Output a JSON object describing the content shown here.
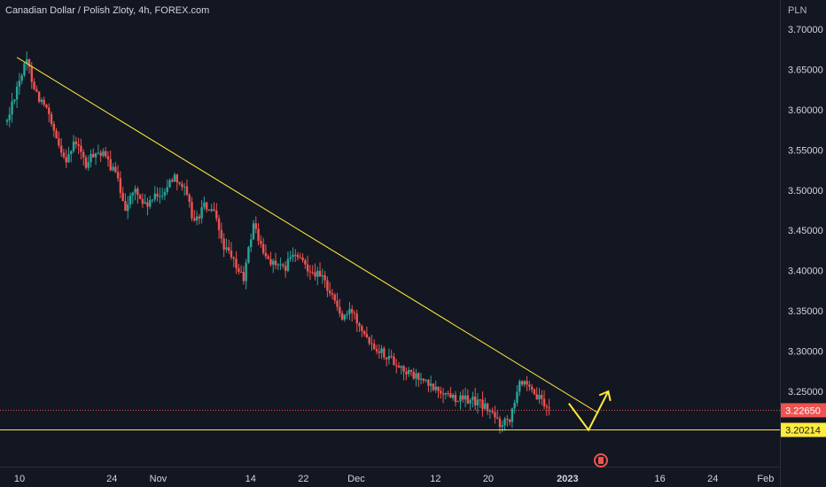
{
  "header": {
    "title": "Canadian Dollar / Polish Zloty, 4h, FOREX.com",
    "unit": "PLN"
  },
  "colors": {
    "background": "#131722",
    "up": "#26a69a",
    "down": "#ef5350",
    "neutral": "#b2b5be",
    "drawing": "#ffeb3b",
    "price_line": "#ef5350",
    "label_text": "#d1d4dc"
  },
  "icons": {
    "event_marker": "flag-icon"
  },
  "chart_data": {
    "type": "candlestick",
    "title": "Canadian Dollar / Polish Zloty, 4h, FOREX.com",
    "ylabel": "PLN",
    "ylim": [
      3.185,
      3.725
    ],
    "xlim": [
      -1,
      61
    ],
    "y_ticks": [
      3.25,
      3.3,
      3.35,
      3.4,
      3.45,
      3.5,
      3.55,
      3.6,
      3.65,
      3.7
    ],
    "y_tick_labels": [
      "3.25000",
      "3.30000",
      "3.35000",
      "3.40000",
      "3.45000",
      "3.50000",
      "3.55000",
      "3.60000",
      "3.65000",
      "3.70000"
    ],
    "x_ticks": [
      {
        "day": 0,
        "label": "10"
      },
      {
        "day": 14,
        "label": "24"
      },
      {
        "day": 21,
        "label": "Nov"
      },
      {
        "day": 35,
        "label": "14"
      },
      {
        "day": 43,
        "label": "22"
      },
      {
        "day": 51,
        "label": "Dec"
      },
      {
        "day": 63,
        "label": "12"
      },
      {
        "day": 71,
        "label": "20"
      },
      {
        "day": 83,
        "label": "2023"
      },
      {
        "day": 97,
        "label": "16"
      },
      {
        "day": 105,
        "label": "24"
      },
      {
        "day": 113,
        "label": "Feb"
      }
    ],
    "price_path": [
      [
        0,
        3.585
      ],
      [
        1,
        3.63
      ],
      [
        2,
        3.66
      ],
      [
        3,
        3.62
      ],
      [
        4,
        3.6
      ],
      [
        5,
        3.56
      ],
      [
        6,
        3.54
      ],
      [
        7,
        3.56
      ],
      [
        8,
        3.53
      ],
      [
        9,
        3.55
      ],
      [
        10,
        3.54
      ],
      [
        11,
        3.52
      ],
      [
        12,
        3.48
      ],
      [
        13,
        3.5
      ],
      [
        14,
        3.48
      ],
      [
        15,
        3.49
      ],
      [
        16,
        3.5
      ],
      [
        17,
        3.52
      ],
      [
        18,
        3.5
      ],
      [
        19,
        3.46
      ],
      [
        20,
        3.48
      ],
      [
        21,
        3.47
      ],
      [
        22,
        3.43
      ],
      [
        23,
        3.41
      ],
      [
        24,
        3.39
      ],
      [
        25,
        3.46
      ],
      [
        26,
        3.42
      ],
      [
        27,
        3.41
      ],
      [
        28,
        3.4
      ],
      [
        29,
        3.42
      ],
      [
        30,
        3.41
      ],
      [
        31,
        3.4
      ],
      [
        32,
        3.39
      ],
      [
        33,
        3.37
      ],
      [
        34,
        3.34
      ],
      [
        35,
        3.35
      ],
      [
        36,
        3.33
      ],
      [
        37,
        3.31
      ],
      [
        38,
        3.3
      ],
      [
        39,
        3.29
      ],
      [
        40,
        3.28
      ],
      [
        41,
        3.27
      ],
      [
        42,
        3.265
      ],
      [
        43,
        3.255
      ],
      [
        44,
        3.25
      ],
      [
        45,
        3.245
      ],
      [
        46,
        3.24
      ],
      [
        47,
        3.24
      ],
      [
        48,
        3.235
      ],
      [
        49,
        3.225
      ],
      [
        50,
        3.21
      ],
      [
        51,
        3.218
      ],
      [
        52,
        3.265
      ],
      [
        53,
        3.25
      ],
      [
        54,
        3.24
      ],
      [
        55,
        3.2265
      ]
    ],
    "last_price": 3.2265,
    "last_price_label": "3.22650",
    "support_price": 3.20214,
    "support_label": "3.20214",
    "trendline": {
      "start": [
        1,
        3.665
      ],
      "end": [
        60,
        3.223
      ]
    },
    "forecast_path": [
      [
        57,
        3.235
      ],
      [
        59,
        3.202
      ],
      [
        61,
        3.25
      ]
    ]
  }
}
